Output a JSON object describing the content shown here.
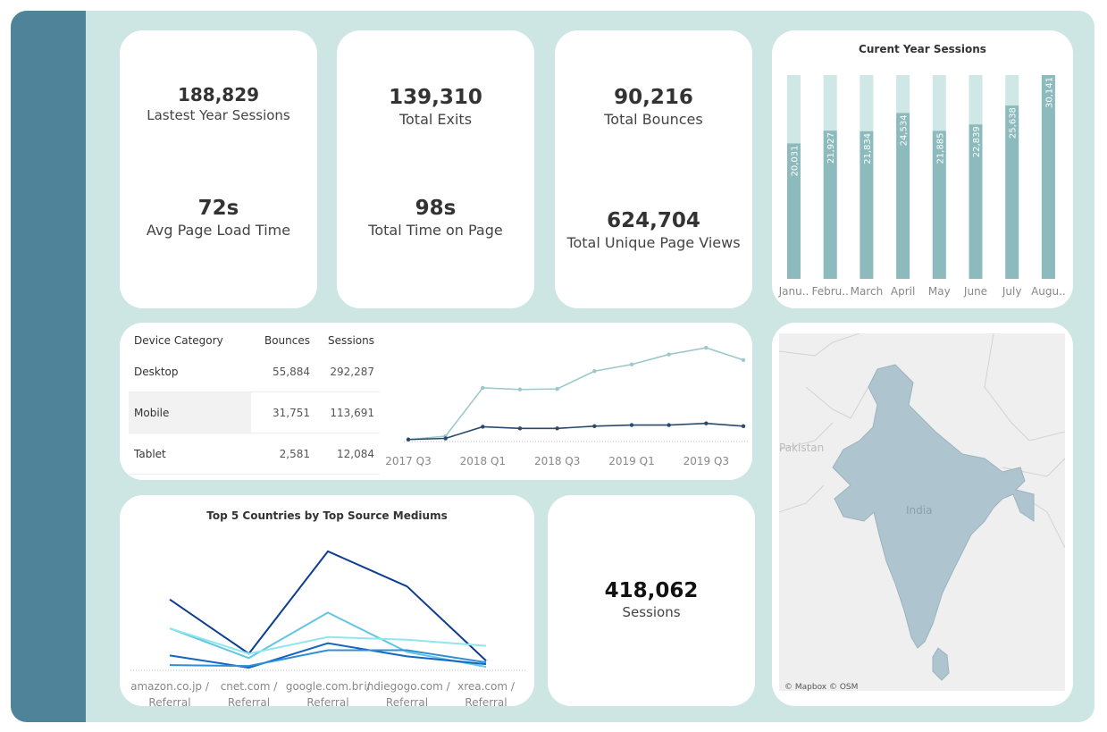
{
  "kpis": {
    "latest_year_sessions": {
      "value": "188,829",
      "label": "Lastest Year Sessions"
    },
    "avg_page_load": {
      "value": "72s",
      "label": "Avg Page Load Time"
    },
    "total_exits": {
      "value": "139,310",
      "label": "Total Exits"
    },
    "total_time_on_page": {
      "value": "98s",
      "label": "Total Time on Page"
    },
    "total_bounces": {
      "value": "90,216",
      "label": "Total Bounces"
    },
    "total_unique_page_views": {
      "value": "624,704",
      "label": "Total Unique Page Views"
    },
    "sessions": {
      "value": "418,062",
      "label": "Sessions"
    }
  },
  "device_table": {
    "headers": [
      "Device Category",
      "Bounces",
      "Sessions"
    ],
    "rows": [
      {
        "category": "Desktop",
        "bounces": "55,884",
        "sessions": "292,287"
      },
      {
        "category": "Mobile",
        "bounces": "31,751",
        "sessions": "113,691"
      },
      {
        "category": "Tablet",
        "bounces": "2,581",
        "sessions": "12,084"
      }
    ]
  },
  "map": {
    "labels": [
      "Pakistan",
      "India"
    ],
    "credit": "© Mapbox © OSM"
  },
  "colors": {
    "sidebar": "#4e8399",
    "background": "#cde6e4",
    "bar_fill": "#8dbbbd",
    "bar_track": "#cfe7e5",
    "map_fill": "#aec5cf"
  },
  "chart_data": [
    {
      "type": "bar",
      "title": "Curent Year Sessions",
      "categories": [
        "Janu..",
        "Febru..",
        "March",
        "April",
        "May",
        "June",
        "July",
        "Augu.."
      ],
      "values": [
        20031,
        21927,
        21834,
        24534,
        21885,
        22839,
        25638,
        30141
      ],
      "value_labels": [
        "20,031",
        "21,927",
        "21,834",
        "24,534",
        "21,885",
        "22,839",
        "25,638",
        "30,141"
      ],
      "ylim": [
        0,
        30141
      ]
    },
    {
      "type": "line",
      "title": "",
      "x": [
        "2017 Q3",
        "2017 Q4",
        "2018 Q1",
        "2018 Q2",
        "2018 Q3",
        "2018 Q4",
        "2019 Q1",
        "2019 Q2",
        "2019 Q3",
        "2019 Q4"
      ],
      "x_tick_labels": [
        "2017 Q3",
        "2018 Q1",
        "2018 Q3",
        "2019 Q1",
        "2019 Q3"
      ],
      "series": [
        {
          "values": [
            2,
            8,
            95,
            92,
            93,
            125,
            137,
            155,
            167,
            145
          ],
          "color": "#9cc8cc"
        },
        {
          "values": [
            2,
            4,
            25,
            22,
            22,
            26,
            28,
            28,
            31,
            26
          ],
          "color": "#2b4a6b"
        }
      ],
      "ylim": [
        0,
        180
      ]
    },
    {
      "type": "line",
      "title": "Top 5 Countries by Top Source Mediums",
      "categories": [
        "amazon.co.jp / Referral",
        "cnet.com / Referral",
        "google.com.br / Referral",
        "indiegogo.com / Referral",
        "xrea.com / Referral"
      ],
      "series": [
        {
          "values": [
            80,
            18,
            135,
            95,
            10
          ],
          "color": "#0d3d91"
        },
        {
          "values": [
            47,
            13,
            65,
            20,
            3
          ],
          "color": "#62c6e3"
        },
        {
          "values": [
            47,
            18,
            37,
            34,
            27
          ],
          "color": "#8fe6ee"
        },
        {
          "values": [
            16,
            2,
            30,
            15,
            6
          ],
          "color": "#1565c0"
        },
        {
          "values": [
            5,
            4,
            22,
            22,
            8
          ],
          "color": "#2f8fd6"
        }
      ],
      "ylim": [
        0,
        140
      ]
    }
  ]
}
